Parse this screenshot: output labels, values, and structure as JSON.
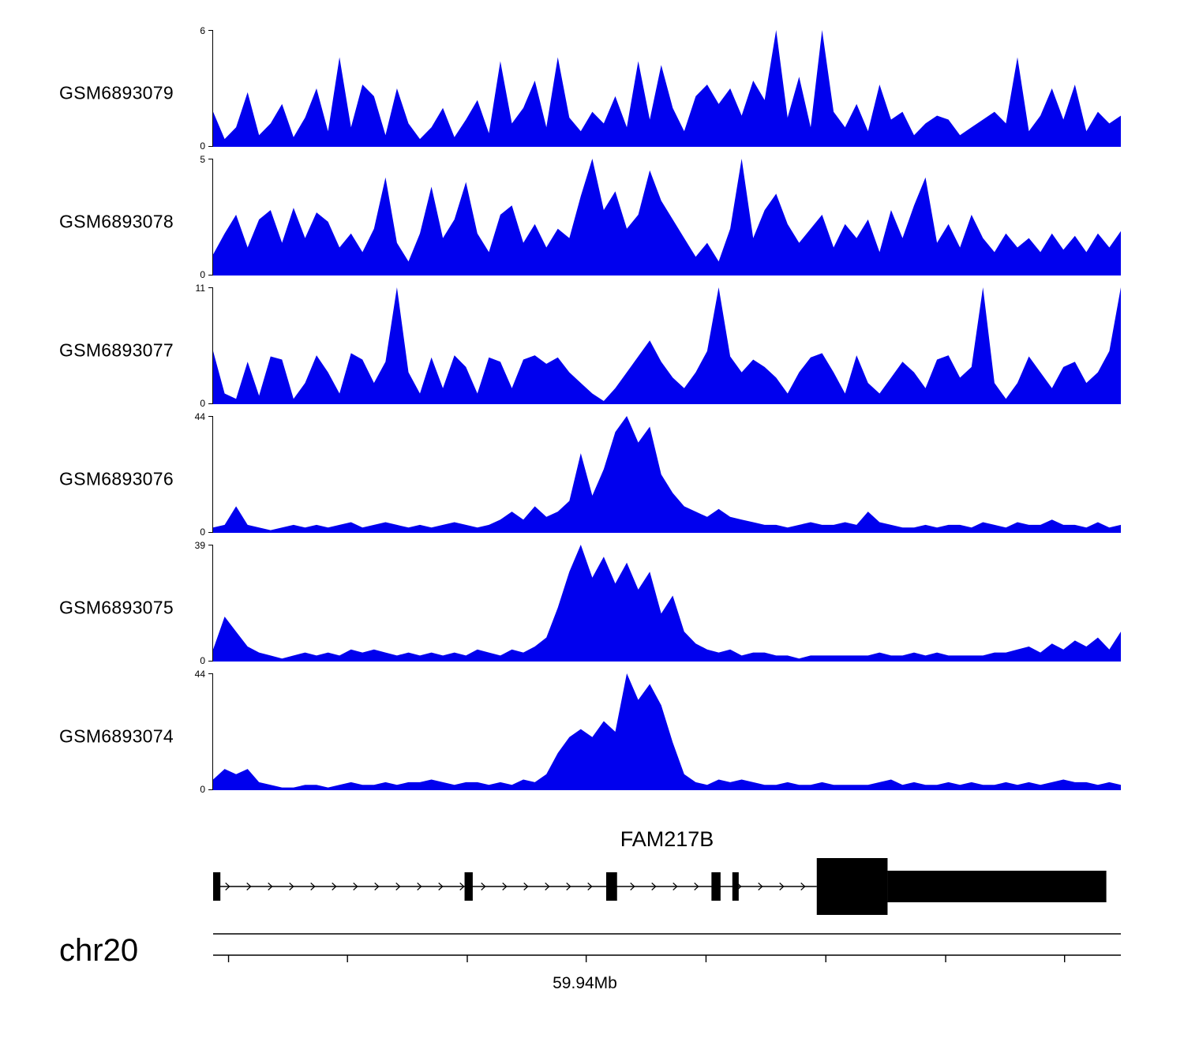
{
  "chart_data": {
    "type": "area",
    "title": "",
    "color": "#0000ee",
    "legend": "none",
    "grid": false,
    "tracks": [
      {
        "label": "GSM6893079",
        "ymin": 0,
        "ymax": 6,
        "values": [
          1.8,
          0.4,
          1.0,
          2.8,
          0.6,
          1.2,
          2.2,
          0.5,
          1.5,
          3.0,
          0.8,
          4.6,
          1.0,
          3.2,
          2.6,
          0.6,
          3.0,
          1.2,
          0.4,
          1.0,
          2.0,
          0.5,
          1.4,
          2.4,
          0.7,
          4.4,
          1.2,
          2.0,
          3.4,
          1.0,
          4.6,
          1.5,
          0.8,
          1.8,
          1.2,
          2.6,
          1.0,
          4.4,
          1.4,
          4.2,
          2.0,
          0.8,
          2.6,
          3.2,
          2.2,
          3.0,
          1.6,
          3.4,
          2.4,
          6.0,
          1.5,
          3.6,
          1.0,
          6.0,
          1.8,
          1.0,
          2.2,
          0.8,
          3.2,
          1.4,
          1.8,
          0.6,
          1.2,
          1.6,
          1.4,
          0.6,
          1.0,
          1.4,
          1.8,
          1.2,
          4.6,
          0.8,
          1.6,
          3.0,
          1.4,
          3.2,
          0.8,
          1.8,
          1.2,
          1.6
        ]
      },
      {
        "label": "GSM6893078",
        "ymin": 0,
        "ymax": 5,
        "values": [
          0.9,
          1.8,
          2.6,
          1.2,
          2.4,
          2.8,
          1.4,
          2.9,
          1.6,
          2.7,
          2.3,
          1.2,
          1.8,
          1.0,
          2.0,
          4.2,
          1.4,
          0.6,
          1.8,
          3.8,
          1.6,
          2.4,
          4.0,
          1.8,
          1.0,
          2.6,
          3.0,
          1.4,
          2.2,
          1.2,
          2.0,
          1.6,
          3.4,
          5.0,
          2.8,
          3.6,
          2.0,
          2.6,
          4.5,
          3.2,
          2.4,
          1.6,
          0.8,
          1.4,
          0.6,
          2.0,
          5.0,
          1.6,
          2.8,
          3.5,
          2.2,
          1.4,
          2.0,
          2.6,
          1.2,
          2.2,
          1.6,
          2.4,
          1.0,
          2.8,
          1.6,
          3.0,
          4.2,
          1.4,
          2.2,
          1.2,
          2.6,
          1.6,
          1.0,
          1.8,
          1.2,
          1.6,
          1.0,
          1.8,
          1.1,
          1.7,
          1.0,
          1.8,
          1.2,
          1.9
        ]
      },
      {
        "label": "GSM6893077",
        "ymin": 0,
        "ymax": 11,
        "values": [
          5.0,
          1.0,
          0.5,
          4.0,
          0.8,
          4.5,
          4.2,
          0.5,
          2.0,
          4.6,
          3.0,
          1.0,
          4.8,
          4.2,
          2.0,
          4.0,
          11.0,
          3.0,
          1.0,
          4.4,
          1.5,
          4.6,
          3.5,
          1.0,
          4.4,
          4.0,
          1.5,
          4.2,
          4.6,
          3.8,
          4.4,
          3.0,
          2.0,
          1.0,
          0.3,
          1.5,
          3.0,
          4.5,
          6.0,
          4.0,
          2.5,
          1.5,
          3.0,
          5.0,
          11.0,
          4.5,
          3.0,
          4.2,
          3.5,
          2.5,
          1.0,
          3.0,
          4.4,
          4.8,
          3.0,
          1.0,
          4.6,
          2.0,
          1.0,
          2.5,
          4.0,
          3.0,
          1.5,
          4.2,
          4.6,
          2.5,
          3.5,
          11.0,
          2.0,
          0.5,
          2.0,
          4.5,
          3.0,
          1.5,
          3.5,
          4.0,
          2.0,
          3.0,
          5.0,
          11.0
        ]
      },
      {
        "label": "GSM6893076",
        "ymin": 0,
        "ymax": 44,
        "values": [
          2,
          3,
          10,
          3,
          2,
          1,
          2,
          3,
          2,
          3,
          2,
          3,
          4,
          2,
          3,
          4,
          3,
          2,
          3,
          2,
          3,
          4,
          3,
          2,
          3,
          5,
          8,
          5,
          10,
          6,
          8,
          12,
          30,
          14,
          24,
          38,
          44,
          34,
          40,
          22,
          15,
          10,
          8,
          6,
          9,
          6,
          5,
          4,
          3,
          3,
          2,
          3,
          4,
          3,
          3,
          4,
          3,
          8,
          4,
          3,
          2,
          2,
          3,
          2,
          3,
          3,
          2,
          4,
          3,
          2,
          4,
          3,
          3,
          5,
          3,
          3,
          2,
          4,
          2,
          3
        ]
      },
      {
        "label": "GSM6893075",
        "ymin": 0,
        "ymax": 39,
        "values": [
          4,
          15,
          10,
          5,
          3,
          2,
          1,
          2,
          3,
          2,
          3,
          2,
          4,
          3,
          4,
          3,
          2,
          3,
          2,
          3,
          2,
          3,
          2,
          4,
          3,
          2,
          4,
          3,
          5,
          8,
          18,
          30,
          39,
          28,
          35,
          26,
          33,
          24,
          30,
          16,
          22,
          10,
          6,
          4,
          3,
          4,
          2,
          3,
          3,
          2,
          2,
          1,
          2,
          2,
          2,
          2,
          2,
          2,
          3,
          2,
          2,
          3,
          2,
          3,
          2,
          2,
          2,
          2,
          3,
          3,
          4,
          5,
          3,
          6,
          4,
          7,
          5,
          8,
          4,
          10
        ]
      },
      {
        "label": "GSM6893074",
        "ymin": 0,
        "ymax": 44,
        "values": [
          4,
          8,
          6,
          8,
          3,
          2,
          1,
          1,
          2,
          2,
          1,
          2,
          3,
          2,
          2,
          3,
          2,
          3,
          3,
          4,
          3,
          2,
          3,
          3,
          2,
          3,
          2,
          4,
          3,
          6,
          14,
          20,
          23,
          20,
          26,
          22,
          44,
          34,
          40,
          32,
          18,
          6,
          3,
          2,
          4,
          3,
          4,
          3,
          2,
          2,
          3,
          2,
          2,
          3,
          2,
          2,
          2,
          2,
          3,
          4,
          2,
          3,
          2,
          2,
          3,
          2,
          3,
          2,
          2,
          3,
          2,
          3,
          2,
          3,
          4,
          3,
          3,
          2,
          3,
          2
        ]
      }
    ],
    "gene_track": {
      "gene_label": "FAM217B",
      "chrom_label": "chr20",
      "axis_label": "59.94Mb",
      "exons": [
        {
          "x": 0.0,
          "w": 0.008
        },
        {
          "x": 0.277,
          "w": 0.009
        },
        {
          "x": 0.433,
          "w": 0.012
        },
        {
          "x": 0.549,
          "w": 0.01
        },
        {
          "x": 0.572,
          "w": 0.007
        }
      ],
      "tall_block": {
        "x": 0.665,
        "w": 0.078
      },
      "wide_block": {
        "x": 0.743,
        "w": 0.241
      },
      "arrow_start": 0.018,
      "arrow_end": 0.66,
      "axis_ticks": [
        0.017,
        0.148,
        0.28,
        0.411,
        0.543,
        0.675,
        0.807,
        0.938
      ]
    }
  }
}
